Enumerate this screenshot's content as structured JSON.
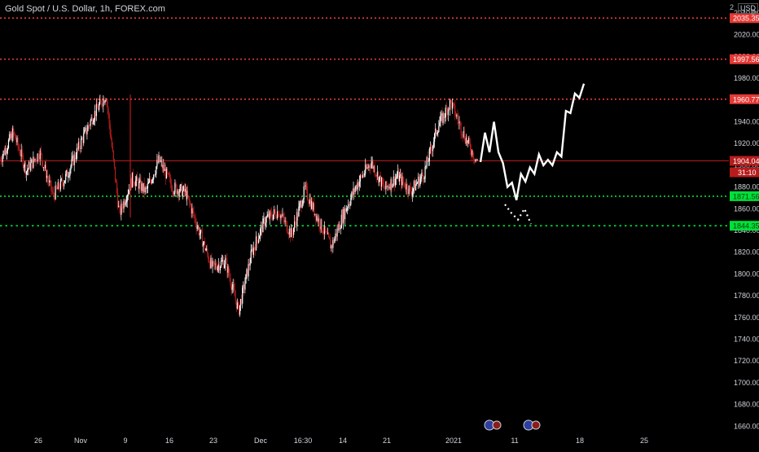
{
  "header": {
    "title": "Gold Spot / U.S. Dollar, 1h, FOREX.com",
    "currency": "USD",
    "corner_top": "2",
    "corner_bottom": "0"
  },
  "colors": {
    "background": "#000000",
    "red_line": "#e53935",
    "green_line": "#00e03a",
    "axis_text": "#d1d4dc",
    "projection": "#ffffff",
    "candle_up": "#ffffff",
    "candle_down": "#b71c1c"
  },
  "chart_data": {
    "type": "line",
    "ylim": [
      1655,
      2052
    ],
    "y_ticks": [
      1660,
      1680,
      1700,
      1720,
      1740,
      1760,
      1780,
      1800,
      1820,
      1840,
      1860,
      1880,
      1900,
      1920,
      1940,
      1960,
      1980,
      2000,
      2020,
      2040
    ],
    "x_tick_labels": [
      "26",
      "Nov",
      "9",
      "16",
      "23",
      "Dec",
      "16:30",
      "14",
      "21",
      "2021",
      "11",
      "18",
      "25"
    ],
    "horizontal_levels": [
      {
        "label": "2035.35",
        "value": 2035.35,
        "color": "#e53935",
        "style": "dotted"
      },
      {
        "label": "1997.56",
        "value": 1997.56,
        "color": "#e53935",
        "style": "dotted"
      },
      {
        "label": "1960.77",
        "value": 1960.77,
        "color": "#e53935",
        "style": "dotted"
      },
      {
        "label": "1904.04",
        "value": 1904.04,
        "color": "#b71c1c",
        "style": "solid"
      },
      {
        "label": "1871.56",
        "value": 1871.56,
        "color": "#00e03a",
        "style": "dotted"
      },
      {
        "label": "1844.35",
        "value": 1844.35,
        "color": "#00e03a",
        "style": "dotted"
      }
    ],
    "countdown": "31:10",
    "price_series_anchors": [
      1905,
      1930,
      1895,
      1912,
      1872,
      1890,
      1918,
      1945,
      1965,
      1855,
      1888,
      1876,
      1905,
      1880,
      1875,
      1840,
      1806,
      1812,
      1766,
      1820,
      1850,
      1858,
      1836,
      1878,
      1850,
      1825,
      1858,
      1884,
      1903,
      1878,
      1890,
      1876,
      1893,
      1935,
      1958,
      1928,
      1903
    ],
    "projection_path": [
      1903,
      1930,
      1912,
      1940,
      1912,
      1902,
      1880,
      1884,
      1868,
      1892,
      1885,
      1898,
      1892,
      1910,
      1900,
      1905,
      1900,
      1912,
      1908,
      1950,
      1948,
      1966,
      1962,
      1975
    ],
    "projection_dotted": [
      1864,
      1856,
      1850,
      1860,
      1846
    ]
  }
}
